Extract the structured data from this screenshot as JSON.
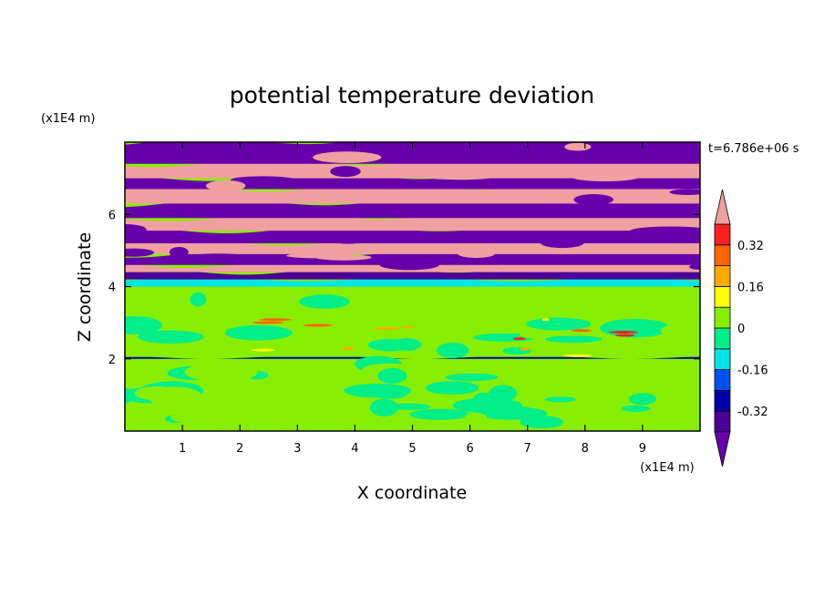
{
  "chart_data": {
    "type": "heatmap",
    "title": "potential temperature deviation",
    "xlabel": "X coordinate",
    "ylabel": "Z coordinate",
    "x_unit_label": "(x1E4 m)",
    "y_unit_label": "(x1E4 m)",
    "time_label": "t=6.786e+06 s",
    "xlim": [
      0,
      10
    ],
    "ylim": [
      0,
      8
    ],
    "x_ticks": [
      "1",
      "2",
      "3",
      "4",
      "5",
      "6",
      "7",
      "8",
      "9"
    ],
    "y_ticks": [
      "2",
      "4",
      "6"
    ],
    "x_tick_values": [
      1,
      2,
      3,
      4,
      5,
      6,
      7,
      8,
      9
    ],
    "y_tick_values": [
      2,
      4,
      6
    ],
    "colorbar": {
      "levels": [
        -0.4,
        -0.32,
        -0.24,
        -0.16,
        -0.08,
        0,
        0.08,
        0.16,
        0.24,
        0.32,
        0.4
      ],
      "colors": [
        "#6600aa",
        "#4b0096",
        "#0000aa",
        "#0050f0",
        "#00e6e6",
        "#00ee88",
        "#88ee00",
        "#ffff00",
        "#ffaa00",
        "#ff6600",
        "#ff2020",
        "#f0a0a0"
      ],
      "tick_labels": [
        "0.32",
        "0.16",
        "0",
        "-0.16",
        "-0.32"
      ],
      "tick_values": [
        0.32,
        0.16,
        0,
        -0.16,
        -0.32
      ],
      "extend": "both"
    },
    "layers": [
      {
        "z_bottom": 0.0,
        "z_top": 2.0,
        "base_value": 0.02
      },
      {
        "z_bottom": 2.0,
        "z_top": 2.05,
        "base_value": -0.3
      },
      {
        "z_bottom": 2.05,
        "z_top": 4.0,
        "base_value": 0.04
      },
      {
        "z_bottom": 4.0,
        "z_top": 4.2,
        "base_value": -0.12
      },
      {
        "z_bottom": 4.2,
        "z_top": 4.4,
        "base_value": -0.38
      },
      {
        "z_bottom": 4.4,
        "z_top": 4.6,
        "base_value": 0.42
      },
      {
        "z_bottom": 4.6,
        "z_top": 4.9,
        "base_value": -0.42
      },
      {
        "z_bottom": 4.9,
        "z_top": 5.2,
        "base_value": 0.42
      },
      {
        "z_bottom": 5.2,
        "z_top": 5.55,
        "base_value": -0.42
      },
      {
        "z_bottom": 5.55,
        "z_top": 5.9,
        "base_value": 0.42
      },
      {
        "z_bottom": 5.9,
        "z_top": 6.3,
        "base_value": -0.42
      },
      {
        "z_bottom": 6.3,
        "z_top": 6.7,
        "base_value": 0.42
      },
      {
        "z_bottom": 6.7,
        "z_top": 7.0,
        "base_value": -0.42
      },
      {
        "z_bottom": 7.0,
        "z_top": 7.4,
        "base_value": 0.42
      },
      {
        "z_bottom": 7.4,
        "z_top": 8.0,
        "base_value": -0.42
      }
    ]
  }
}
